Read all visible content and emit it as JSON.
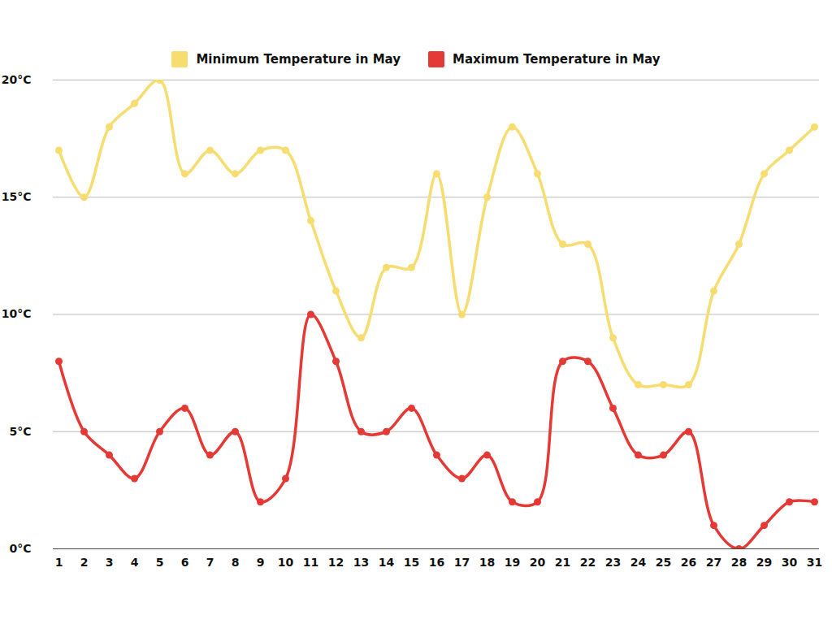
{
  "chart_data": {
    "type": "line",
    "categories": [
      "1",
      "2",
      "3",
      "4",
      "5",
      "6",
      "7",
      "8",
      "9",
      "10",
      "11",
      "12",
      "13",
      "14",
      "15",
      "16",
      "17",
      "18",
      "19",
      "20",
      "21",
      "22",
      "23",
      "24",
      "25",
      "26",
      "27",
      "28",
      "29",
      "30",
      "31"
    ],
    "series": [
      {
        "name": "Minimum Temperature in May",
        "color": "#f7dc6f",
        "values": [
          17,
          15,
          18,
          19,
          20,
          16,
          17,
          16,
          17,
          17,
          14,
          11,
          9,
          12,
          12,
          16,
          10,
          15,
          18,
          16,
          13,
          13,
          9,
          7,
          7,
          7,
          11,
          13,
          16,
          17,
          18
        ]
      },
      {
        "name": "Maximum Temperature in May",
        "color": "#e53935",
        "values": [
          8,
          5,
          4,
          3,
          5,
          6,
          4,
          5,
          2,
          3,
          10,
          8,
          5,
          5,
          6,
          4,
          3,
          4,
          2,
          2,
          8,
          8,
          6,
          4,
          4,
          5,
          1,
          0,
          1,
          2,
          2
        ]
      }
    ],
    "ylim": [
      0,
      20
    ],
    "yticks": [
      {
        "value": 0,
        "label": "0°C"
      },
      {
        "value": 5,
        "label": "5°C"
      },
      {
        "value": 10,
        "label": "10°C"
      },
      {
        "value": 15,
        "label": "15°C"
      },
      {
        "value": 20,
        "label": "20°C"
      }
    ],
    "grid": true,
    "legend": "top",
    "marker": "circle",
    "line_style": "solid"
  }
}
